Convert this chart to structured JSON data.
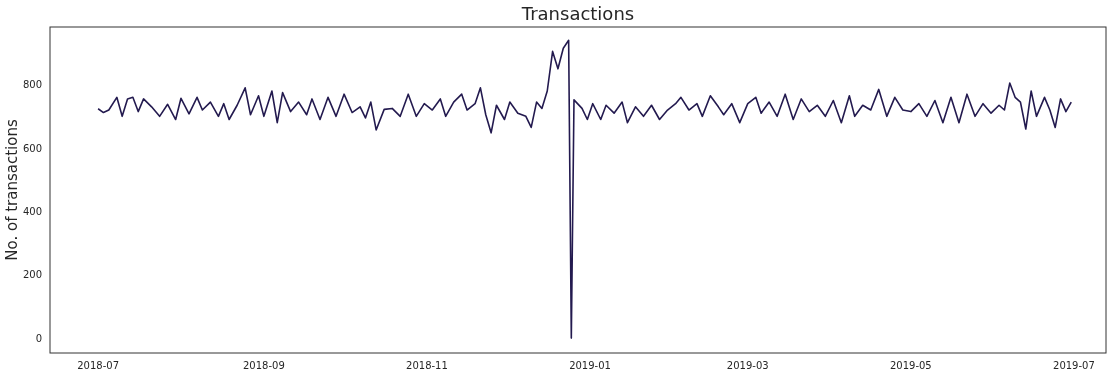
{
  "chart_data": {
    "type": "line",
    "title": "Transactions",
    "ylabel": "No. of transactions",
    "xlim": [
      "2018-06-13",
      "2019-07-13"
    ],
    "ylim": [
      -47,
      982
    ],
    "xticks": [
      {
        "value": "2018-07-01",
        "label": "2018-07"
      },
      {
        "value": "2018-09-01",
        "label": "2018-09"
      },
      {
        "value": "2018-11-01",
        "label": "2018-11"
      },
      {
        "value": "2019-01-01",
        "label": "2019-01"
      },
      {
        "value": "2019-03-01",
        "label": "2019-03"
      },
      {
        "value": "2019-05-01",
        "label": "2019-05"
      },
      {
        "value": "2019-07-01",
        "label": "2019-07"
      }
    ],
    "yticks": [
      0,
      200,
      400,
      600,
      800
    ],
    "x": [
      "2018-07-01",
      "2018-07-03",
      "2018-07-05",
      "2018-07-08",
      "2018-07-10",
      "2018-07-12",
      "2018-07-14",
      "2018-07-16",
      "2018-07-18",
      "2018-07-21",
      "2018-07-24",
      "2018-07-27",
      "2018-07-30",
      "2018-08-01",
      "2018-08-04",
      "2018-08-07",
      "2018-08-09",
      "2018-08-12",
      "2018-08-15",
      "2018-08-17",
      "2018-08-19",
      "2018-08-22",
      "2018-08-25",
      "2018-08-27",
      "2018-08-30",
      "2018-09-01",
      "2018-09-04",
      "2018-09-06",
      "2018-09-08",
      "2018-09-11",
      "2018-09-14",
      "2018-09-17",
      "2018-09-19",
      "2018-09-22",
      "2018-09-25",
      "2018-09-28",
      "2018-10-01",
      "2018-10-04",
      "2018-10-07",
      "2018-10-09",
      "2018-10-11",
      "2018-10-13",
      "2018-10-16",
      "2018-10-19",
      "2018-10-22",
      "2018-10-25",
      "2018-10-28",
      "2018-10-31",
      "2018-11-03",
      "2018-11-06",
      "2018-11-08",
      "2018-11-11",
      "2018-11-14",
      "2018-11-16",
      "2018-11-19",
      "2018-11-21",
      "2018-11-23",
      "2018-11-25",
      "2018-11-27",
      "2018-11-30",
      "2018-12-02",
      "2018-12-05",
      "2018-12-08",
      "2018-12-10",
      "2018-12-12",
      "2018-12-14",
      "2018-12-16",
      "2018-12-18",
      "2018-12-20",
      "2018-12-22",
      "2018-12-24",
      "2018-12-25",
      "2018-12-26",
      "2018-12-29",
      "2018-12-31",
      "2019-01-02",
      "2019-01-05",
      "2019-01-07",
      "2019-01-10",
      "2019-01-13",
      "2019-01-15",
      "2019-01-18",
      "2019-01-21",
      "2019-01-24",
      "2019-01-27",
      "2019-01-30",
      "2019-02-02",
      "2019-02-04",
      "2019-02-07",
      "2019-02-10",
      "2019-02-12",
      "2019-02-15",
      "2019-02-18",
      "2019-02-20",
      "2019-02-23",
      "2019-02-26",
      "2019-03-01",
      "2019-03-04",
      "2019-03-06",
      "2019-03-09",
      "2019-03-12",
      "2019-03-15",
      "2019-03-18",
      "2019-03-21",
      "2019-03-24",
      "2019-03-27",
      "2019-03-30",
      "2019-04-02",
      "2019-04-05",
      "2019-04-08",
      "2019-04-10",
      "2019-04-13",
      "2019-04-16",
      "2019-04-19",
      "2019-04-22",
      "2019-04-25",
      "2019-04-28",
      "2019-05-01",
      "2019-05-04",
      "2019-05-07",
      "2019-05-10",
      "2019-05-13",
      "2019-05-16",
      "2019-05-19",
      "2019-05-22",
      "2019-05-25",
      "2019-05-28",
      "2019-05-31",
      "2019-06-03",
      "2019-06-05",
      "2019-06-07",
      "2019-06-09",
      "2019-06-11",
      "2019-06-13",
      "2019-06-15",
      "2019-06-17",
      "2019-06-20",
      "2019-06-22",
      "2019-06-24",
      "2019-06-26",
      "2019-06-28",
      "2019-06-30"
    ],
    "series": [
      {
        "color": "#231a4f",
        "values": [
          724,
          712,
          720,
          760,
          700,
          755,
          760,
          715,
          755,
          730,
          700,
          738,
          690,
          757,
          708,
          760,
          720,
          745,
          700,
          740,
          690,
          735,
          790,
          705,
          765,
          700,
          780,
          680,
          775,
          715,
          745,
          705,
          755,
          690,
          760,
          700,
          770,
          712,
          730,
          695,
          745,
          657,
          722,
          725,
          700,
          770,
          700,
          740,
          720,
          755,
          700,
          745,
          770,
          720,
          740,
          790,
          705,
          648,
          735,
          690,
          745,
          710,
          700,
          665,
          745,
          725,
          780,
          905,
          850,
          915,
          940,
          0,
          752,
          725,
          690,
          740,
          690,
          735,
          710,
          745,
          680,
          730,
          700,
          735,
          690,
          720,
          740,
          760,
          720,
          740,
          700,
          765,
          730,
          705,
          740,
          680,
          740,
          760,
          710,
          745,
          700,
          770,
          690,
          755,
          715,
          735,
          700,
          750,
          680,
          765,
          700,
          735,
          720,
          785,
          700,
          760,
          720,
          715,
          740,
          700,
          750,
          680,
          760,
          680,
          770,
          700,
          740,
          710,
          735,
          720,
          805,
          760,
          745,
          660,
          780,
          700,
          760,
          720,
          665,
          755,
          715,
          745
        ]
      }
    ]
  }
}
